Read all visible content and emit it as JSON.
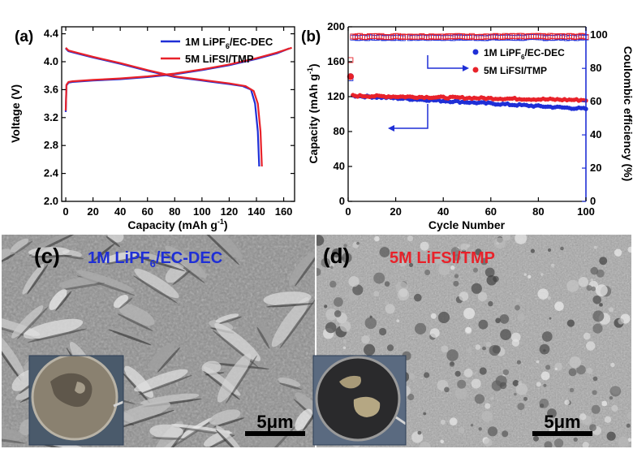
{
  "colors": {
    "blue": "#1f2fd6",
    "red": "#e8222a",
    "axis": "#000000",
    "right_axis": "#1f2fd6"
  },
  "panel_a": {
    "label": "(a)",
    "xlabel": "Capacity (mAh g",
    "xlabel_sup": "-1",
    "xlabel_end": ")",
    "ylabel": "Voltage (V)",
    "legend": [
      {
        "pre": "1M LiPF",
        "sub": "6",
        "post": "/EC-DEC",
        "color": "#1f2fd6"
      },
      {
        "pre": "5M LiFSI/TMP",
        "sub": "",
        "post": "",
        "color": "#e8222a"
      }
    ]
  },
  "panel_b": {
    "label": "(b)",
    "xlabel": "Cycle Number",
    "ylabel": "Capacity (mAh g",
    "ylabel_sup": "-1",
    "ylabel_end": ")",
    "y2label": "Coulombic efficiency (%)",
    "legend": [
      {
        "pre": "1M LiPF",
        "sub": "6",
        "post": "/EC-DEC",
        "color": "#1f2fd6"
      },
      {
        "pre": "5M LiFSI/TMP",
        "sub": "",
        "post": "",
        "color": "#e8222a"
      }
    ]
  },
  "panel_c": {
    "label": "(c)",
    "title_pre": "1M LiPF",
    "title_sub": "6",
    "title_post": "/EC-DEC",
    "scale": "5μm"
  },
  "panel_d": {
    "label": "(d)",
    "title": "5M LiFSI/TMP",
    "scale": "5μm"
  },
  "chart_data": [
    {
      "type": "line",
      "panel": "a",
      "xlabel": "Capacity (mAh g-1)",
      "ylabel": "Voltage (V)",
      "xlim": [
        -3,
        168
      ],
      "ylim": [
        2.0,
        4.5
      ],
      "xticks": [
        0,
        20,
        40,
        60,
        80,
        100,
        120,
        140,
        160
      ],
      "yticks": [
        2.0,
        2.4,
        2.8,
        3.2,
        3.6,
        4.0,
        4.4
      ],
      "series": [
        {
          "name": "1M LiPF6/EC-DEC",
          "color": "#1f2fd6",
          "role": "discharge",
          "x": [
            0,
            2,
            10,
            20,
            40,
            60,
            80,
            100,
            120,
            130,
            136,
            139,
            141,
            142
          ],
          "y": [
            4.19,
            4.15,
            4.11,
            4.06,
            3.97,
            3.87,
            3.78,
            3.73,
            3.68,
            3.65,
            3.6,
            3.4,
            3.0,
            2.5
          ]
        },
        {
          "name": "1M LiPF6/EC-DEC",
          "color": "#1f2fd6",
          "role": "charge",
          "x": [
            0,
            0.5,
            2,
            5,
            20,
            40,
            60,
            80,
            100,
            120,
            140,
            155,
            164
          ],
          "y": [
            3.28,
            3.66,
            3.7,
            3.71,
            3.73,
            3.75,
            3.78,
            3.82,
            3.88,
            3.95,
            4.04,
            4.12,
            4.19
          ]
        },
        {
          "name": "5M LiFSI/TMP",
          "color": "#e8222a",
          "role": "discharge",
          "x": [
            0,
            2,
            10,
            20,
            40,
            60,
            80,
            100,
            120,
            132,
            138,
            141,
            143,
            144
          ],
          "y": [
            4.2,
            4.16,
            4.12,
            4.07,
            3.98,
            3.88,
            3.79,
            3.74,
            3.69,
            3.65,
            3.58,
            3.4,
            3.0,
            2.5
          ]
        },
        {
          "name": "5M LiFSI/TMP",
          "color": "#e8222a",
          "role": "charge",
          "x": [
            0,
            0.5,
            2,
            5,
            20,
            40,
            60,
            80,
            100,
            120,
            140,
            155,
            166
          ],
          "y": [
            3.3,
            3.67,
            3.71,
            3.72,
            3.74,
            3.76,
            3.79,
            3.83,
            3.89,
            3.96,
            4.05,
            4.13,
            4.2
          ]
        }
      ]
    },
    {
      "type": "scatter",
      "panel": "b",
      "xlabel": "Cycle Number",
      "ylabel": "Capacity (mAh g-1)",
      "y2label": "Coulombic efficiency (%)",
      "xlim": [
        0,
        100
      ],
      "ylim": [
        0,
        200
      ],
      "y2lim": [
        0,
        105
      ],
      "xticks": [
        0,
        20,
        40,
        60,
        80,
        100
      ],
      "yticks": [
        0,
        40,
        80,
        120,
        160,
        200
      ],
      "y2ticks": [
        0,
        20,
        40,
        60,
        80,
        100
      ],
      "capacity": [
        {
          "name": "1M LiPF6/EC-DEC",
          "color": "#1f2fd6",
          "first": 143,
          "start": 121,
          "end": 106
        },
        {
          "name": "5M LiFSI/TMP",
          "color": "#e8222a",
          "first": 143,
          "start": 121,
          "end": 116
        }
      ],
      "efficiency": [
        {
          "name": "1M LiPF6/EC-DEC",
          "color": "#1f2fd6",
          "first": 74,
          "rest": 98.5
        },
        {
          "name": "5M LiFSI/TMP",
          "color": "#e8222a",
          "first": 85,
          "rest": 99.2
        }
      ]
    }
  ]
}
